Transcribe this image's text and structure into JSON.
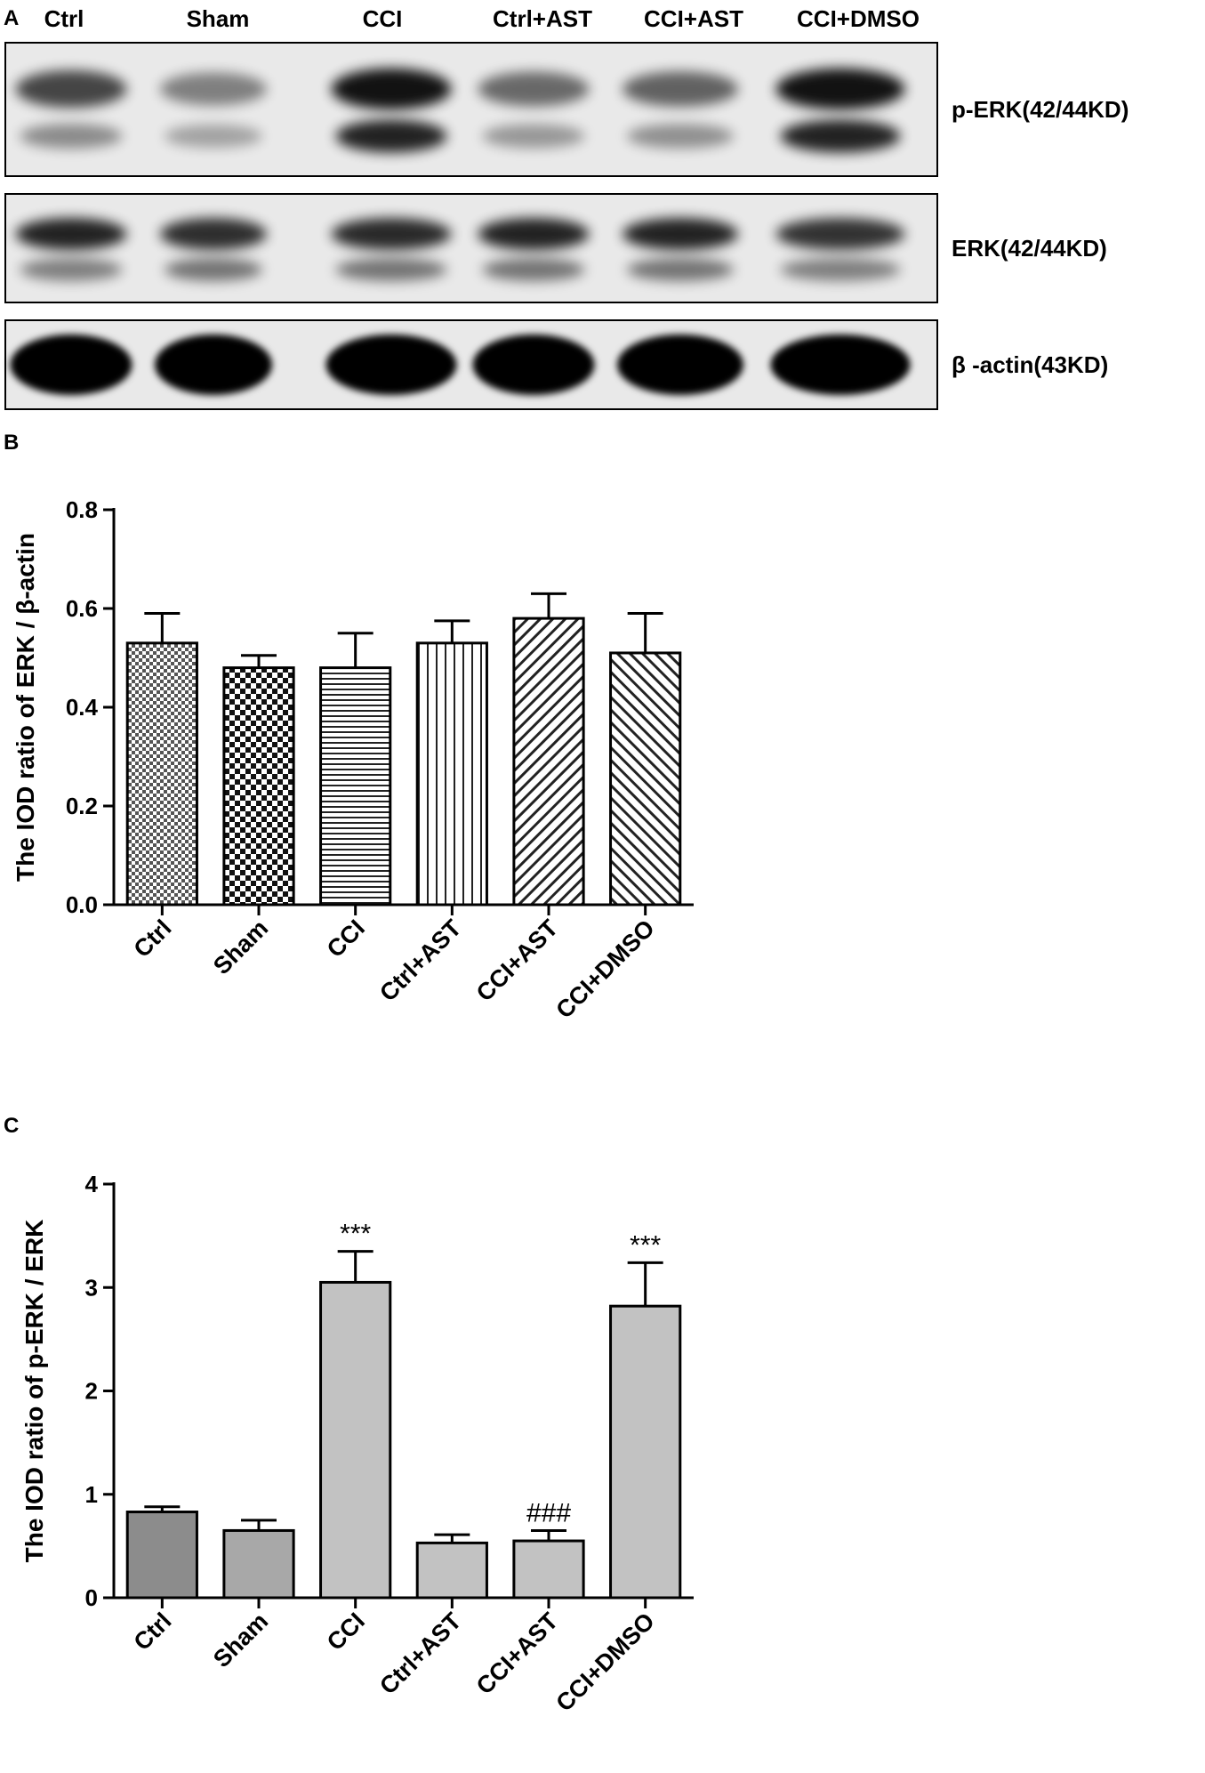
{
  "panel_letters": [
    "A",
    "B",
    "C"
  ],
  "blot": {
    "lane_labels": [
      "Ctrl",
      "Sham",
      "CCI",
      "Ctrl+AST",
      "CCI+AST",
      "CCI+DMSO"
    ],
    "rows": [
      {
        "label": "p-ERK(42/44KD)",
        "upper_band_intensity": [
          0.7,
          0.45,
          0.92,
          0.55,
          0.58,
          0.92
        ],
        "lower_band_intensity": [
          0.4,
          0.3,
          0.85,
          0.35,
          0.38,
          0.85
        ]
      },
      {
        "label": "ERK(42/44KD)",
        "upper_band_intensity": [
          0.85,
          0.8,
          0.82,
          0.85,
          0.85,
          0.78
        ],
        "lower_band_intensity": [
          0.45,
          0.5,
          0.5,
          0.5,
          0.5,
          0.45
        ]
      },
      {
        "label": "β -actin(43KD)",
        "band_intensity": [
          1.0,
          1.0,
          1.0,
          1.0,
          1.0,
          1.0
        ]
      }
    ]
  },
  "chart_data": [
    {
      "type": "bar",
      "panel": "B",
      "ylabel": "The IOD ratio of ERK /  β-actin",
      "categories": [
        "Ctrl",
        "Sham",
        "CCI",
        "Ctrl+AST",
        "CCI+AST",
        "CCI+DMSO"
      ],
      "values": [
        0.53,
        0.48,
        0.48,
        0.53,
        0.58,
        0.51
      ],
      "errors": [
        0.06,
        0.025,
        0.07,
        0.045,
        0.05,
        0.08
      ],
      "patterns": [
        "dots",
        "checker",
        "hlines",
        "vlines",
        "diag-right",
        "diag-left"
      ],
      "ylim": [
        0,
        0.8
      ],
      "yticks": [
        "0.0",
        "0.2",
        "0.4",
        "0.6",
        "0.8"
      ],
      "annotations": [
        "",
        "",
        "",
        "",
        "",
        ""
      ]
    },
    {
      "type": "bar",
      "panel": "C",
      "ylabel": "The IOD ratio of p-ERK / ERK",
      "categories": [
        "Ctrl",
        "Sham",
        "CCI",
        "Ctrl+AST",
        "CCI+AST",
        "CCI+DMSO"
      ],
      "values": [
        0.83,
        0.65,
        3.05,
        0.53,
        0.55,
        2.82
      ],
      "errors": [
        0.05,
        0.1,
        0.3,
        0.08,
        0.1,
        0.42
      ],
      "colors": [
        "#8c8c8c",
        "#a8a8a8",
        "#c2c2c2",
        "#c2c2c2",
        "#c2c2c2",
        "#c2c2c2"
      ],
      "ylim": [
        0,
        4
      ],
      "yticks": [
        "0",
        "1",
        "2",
        "3",
        "4"
      ],
      "annotations": [
        "",
        "",
        "***",
        "",
        "###",
        "***"
      ]
    }
  ]
}
